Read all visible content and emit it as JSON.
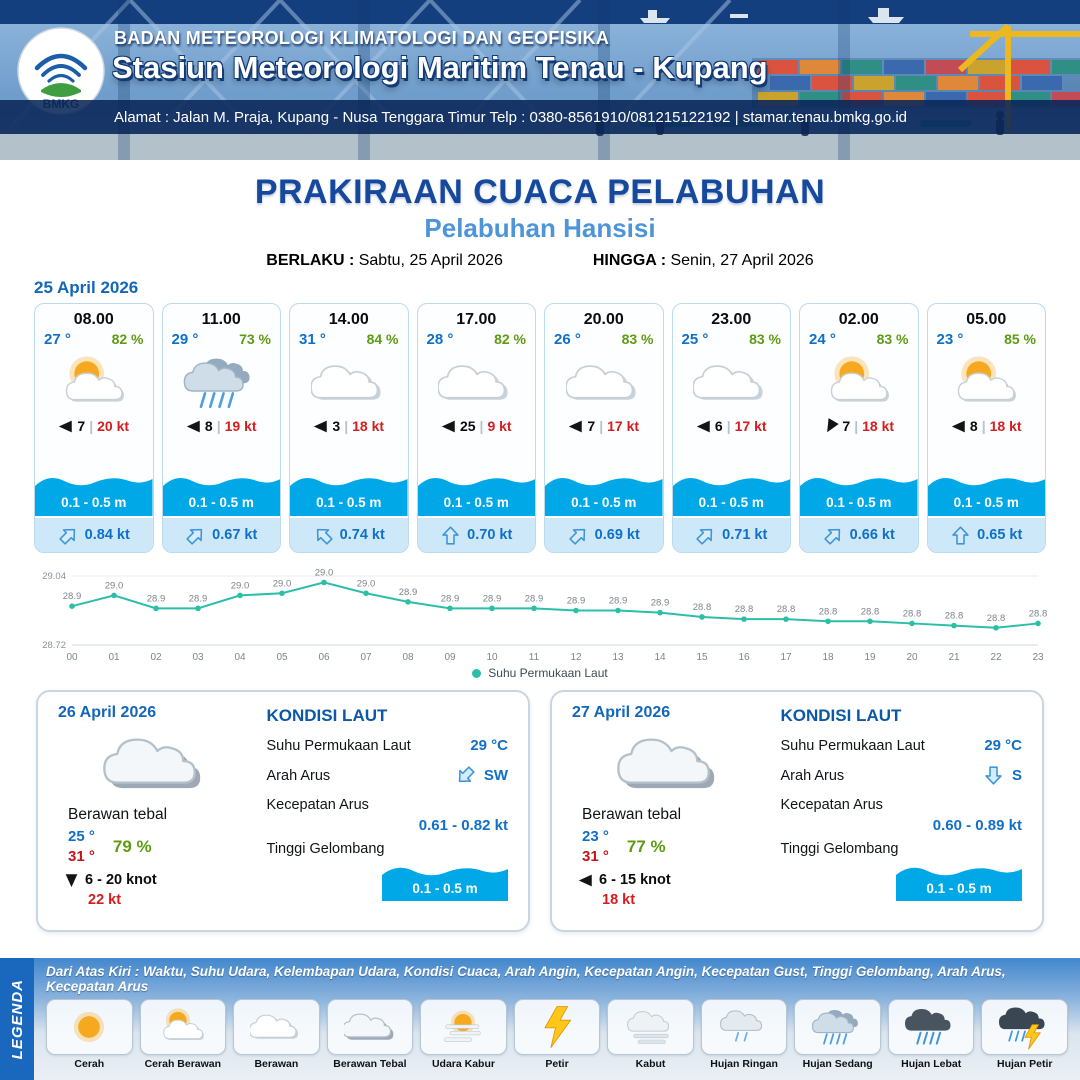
{
  "header": {
    "org": "BADAN METEOROLOGI KLIMATOLOGI DAN GEOFISIKA",
    "station": "Stasiun Meteorologi Maritim Tenau - Kupang",
    "address": "Alamat : Jalan M. Praja, Kupang - Nusa Tenggara Timur Telp : 0380-8561910/081215122192  | stamar.tenau.bmkg.go.id",
    "logo": "BMKG"
  },
  "title": {
    "main": "PRAKIRAAN CUACA PELABUHAN",
    "sub": "Pelabuhan Hansisi",
    "valid_from_label": "BERLAKU :",
    "valid_from": "Sabtu, 25 April 2026",
    "valid_to_label": "HINGGA :",
    "valid_to": "Senin, 27 April 2026"
  },
  "ui": {
    "wind_separator": "|"
  },
  "hourly": {
    "date": "25 April 2026",
    "cards": [
      {
        "time": "08.00",
        "temp": "27 °",
        "rh": "82 %",
        "icon": "cerah-berawan",
        "wind_rot": 0,
        "wind": "7",
        "gust": "20 kt",
        "wave": "0.1 - 0.5 m",
        "cur_rot": 45,
        "current": "0.84 kt"
      },
      {
        "time": "11.00",
        "temp": "29 °",
        "rh": "73 %",
        "icon": "hujan-sedang",
        "wind_rot": 0,
        "wind": "8",
        "gust": "19 kt",
        "wave": "0.1 - 0.5 m",
        "cur_rot": 45,
        "current": "0.67 kt"
      },
      {
        "time": "14.00",
        "temp": "31 °",
        "rh": "84 %",
        "icon": "berawan",
        "wind_rot": 0,
        "wind": "3",
        "gust": "18 kt",
        "wave": "0.1 - 0.5 m",
        "cur_rot": 315,
        "current": "0.74 kt"
      },
      {
        "time": "17.00",
        "temp": "28 °",
        "rh": "82 %",
        "icon": "berawan",
        "wind_rot": 0,
        "wind": "25",
        "gust": "9 kt",
        "wave": "0.1 - 0.5 m",
        "cur_rot": 0,
        "current": "0.70 kt"
      },
      {
        "time": "20.00",
        "temp": "26 °",
        "rh": "83 %",
        "icon": "berawan",
        "wind_rot": 0,
        "wind": "7",
        "gust": "17 kt",
        "wave": "0.1 - 0.5 m",
        "cur_rot": 45,
        "current": "0.69 kt"
      },
      {
        "time": "23.00",
        "temp": "25 °",
        "rh": "83 %",
        "icon": "berawan",
        "wind_rot": 0,
        "wind": "6",
        "gust": "17 kt",
        "wave": "0.1 - 0.5 m",
        "cur_rot": 45,
        "current": "0.71 kt"
      },
      {
        "time": "02.00",
        "temp": "24 °",
        "rh": "83 %",
        "icon": "cerah-berawan",
        "wind_rot": -60,
        "wind": "7",
        "gust": "18 kt",
        "wave": "0.1 - 0.5 m",
        "cur_rot": 45,
        "current": "0.66 kt"
      },
      {
        "time": "05.00",
        "temp": "23 °",
        "rh": "85 %",
        "icon": "cerah-berawan",
        "wind_rot": 0,
        "wind": "8",
        "gust": "18 kt",
        "wave": "0.1 - 0.5 m",
        "cur_rot": 0,
        "current": "0.65 kt"
      }
    ]
  },
  "chart_data": {
    "type": "line",
    "title": "",
    "series_name": "Suhu Permukaan Laut",
    "x": [
      "00",
      "01",
      "02",
      "03",
      "04",
      "05",
      "06",
      "07",
      "08",
      "09",
      "10",
      "11",
      "12",
      "13",
      "14",
      "15",
      "16",
      "17",
      "18",
      "19",
      "20",
      "21",
      "22",
      "23"
    ],
    "values": [
      28.9,
      29.0,
      28.9,
      28.9,
      29.0,
      29.0,
      29.0,
      29.0,
      28.9,
      28.9,
      28.9,
      28.9,
      28.9,
      28.9,
      28.9,
      28.8,
      28.8,
      28.8,
      28.8,
      28.8,
      28.8,
      28.8,
      28.8,
      28.8
    ],
    "values_plot": [
      28.9,
      28.95,
      28.89,
      28.89,
      28.95,
      28.96,
      29.01,
      28.96,
      28.92,
      28.89,
      28.89,
      28.89,
      28.88,
      28.88,
      28.87,
      28.85,
      28.84,
      28.84,
      28.83,
      28.83,
      28.82,
      28.81,
      28.8,
      28.82
    ],
    "point_labels": [
      "28.9",
      "29.0",
      "28.9",
      "28.9",
      "29.0",
      "29.0",
      "29.0",
      "29.0",
      "28.9",
      "28.9",
      "28.9",
      "28.9",
      "28.9",
      "28.9",
      "28.9",
      "28.8",
      "28.8",
      "28.8",
      "28.8",
      "28.8",
      "28.8",
      "28.8",
      "28.8",
      "28.8"
    ],
    "ylim": [
      28.72,
      29.04
    ],
    "y_ticks": [
      "29.04",
      "28.72"
    ],
    "xlabel": "",
    "ylabel": "",
    "line_color": "#2cbfa8",
    "legend_position": "bottom"
  },
  "daily": [
    {
      "date": "26 April 2026",
      "icon": "berawan-tebal",
      "condition": "Berawan tebal",
      "temp_min": "25 °",
      "temp_max": "31 °",
      "rh": "79 %",
      "wind_rot": -90,
      "wind": "6  - 20 knot",
      "gust": "22 kt",
      "sea_title": "KONDISI LAUT",
      "sst_label": "Suhu Permukaan Laut",
      "sst": "29 °C",
      "current_dir_label": "Arah Arus",
      "cur_rot": 225,
      "current_dir": "SW",
      "current_speed_label": "Kecepatan Arus",
      "current_speed": "0.61 - 0.82 kt",
      "wave_label": "Tinggi Gelombang",
      "wave": "0.1 - 0.5 m"
    },
    {
      "date": "27 April 2026",
      "icon": "berawan-tebal",
      "condition": "Berawan tebal",
      "temp_min": "23 °",
      "temp_max": "31 °",
      "rh": "77 %",
      "wind_rot": 0,
      "wind": "6  - 15 knot",
      "gust": "18 kt",
      "sea_title": "KONDISI LAUT",
      "sst_label": "Suhu Permukaan Laut",
      "sst": "29 °C",
      "current_dir_label": "Arah Arus",
      "cur_rot": 180,
      "current_dir": "S",
      "current_speed_label": "Kecepatan Arus",
      "current_speed": "0.60 - 0.89 kt",
      "wave_label": "Tinggi Gelombang",
      "wave": "0.1 - 0.5 m"
    }
  ],
  "legend": {
    "title": "LEGENDA",
    "note": "Dari Atas Kiri : Waktu, Suhu Udara, Kelembapan Udara, Kondisi Cuaca, Arah Angin, Kecepatan Angin, Kecepatan Gust, Tinggi Gelombang, Arah Arus, Kecepatan Arus",
    "items": [
      {
        "icon": "cerah",
        "label": "Cerah"
      },
      {
        "icon": "cerah-berawan",
        "label": "Cerah Berawan"
      },
      {
        "icon": "berawan",
        "label": "Berawan"
      },
      {
        "icon": "berawan-tebal",
        "label": "Berawan Tebal"
      },
      {
        "icon": "udara-kabur",
        "label": "Udara Kabur"
      },
      {
        "icon": "petir",
        "label": "Petir"
      },
      {
        "icon": "kabut",
        "label": "Kabut"
      },
      {
        "icon": "hujan-ringan",
        "label": "Hujan Ringan"
      },
      {
        "icon": "hujan-sedang",
        "label": "Hujan Sedang"
      },
      {
        "icon": "hujan-lebat",
        "label": "Hujan Lebat"
      },
      {
        "icon": "hujan-petir",
        "label": "Hujan Petir"
      }
    ]
  }
}
